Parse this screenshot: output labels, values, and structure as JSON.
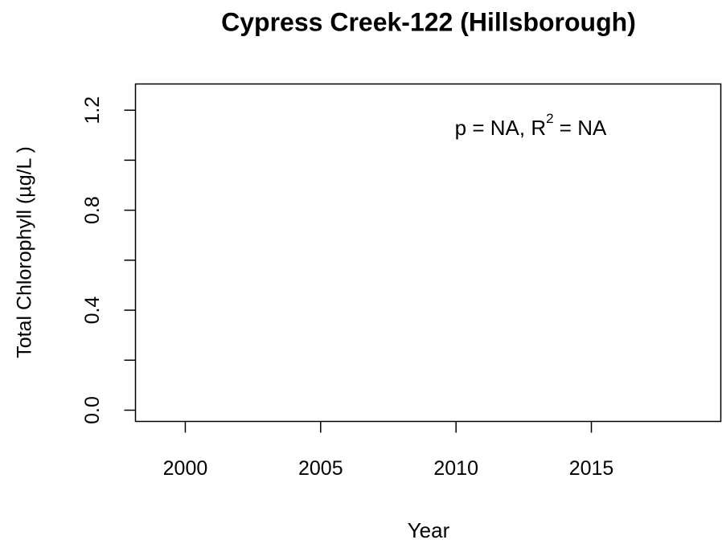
{
  "chart_data": {
    "type": "scatter",
    "title": "Cypress Creek-122 (Hillsborough)",
    "x_label": "Year",
    "y_label": "Total Chlorophyll (µg/L )",
    "annotation": [
      "p = NA, R",
      "2",
      " = NA"
    ],
    "xlim": [
      1998.16,
      2019.78
    ],
    "xticks": [
      2000,
      2005,
      2010,
      2015
    ],
    "ylim": [
      -0.045,
      1.305
    ],
    "yticks": [
      {
        "value": 0,
        "label": "0.0"
      },
      0.4,
      0.8,
      1.2
    ],
    "yminor_ticks": [
      0.2,
      0.6,
      1.0
    ],
    "x": [],
    "values": []
  }
}
